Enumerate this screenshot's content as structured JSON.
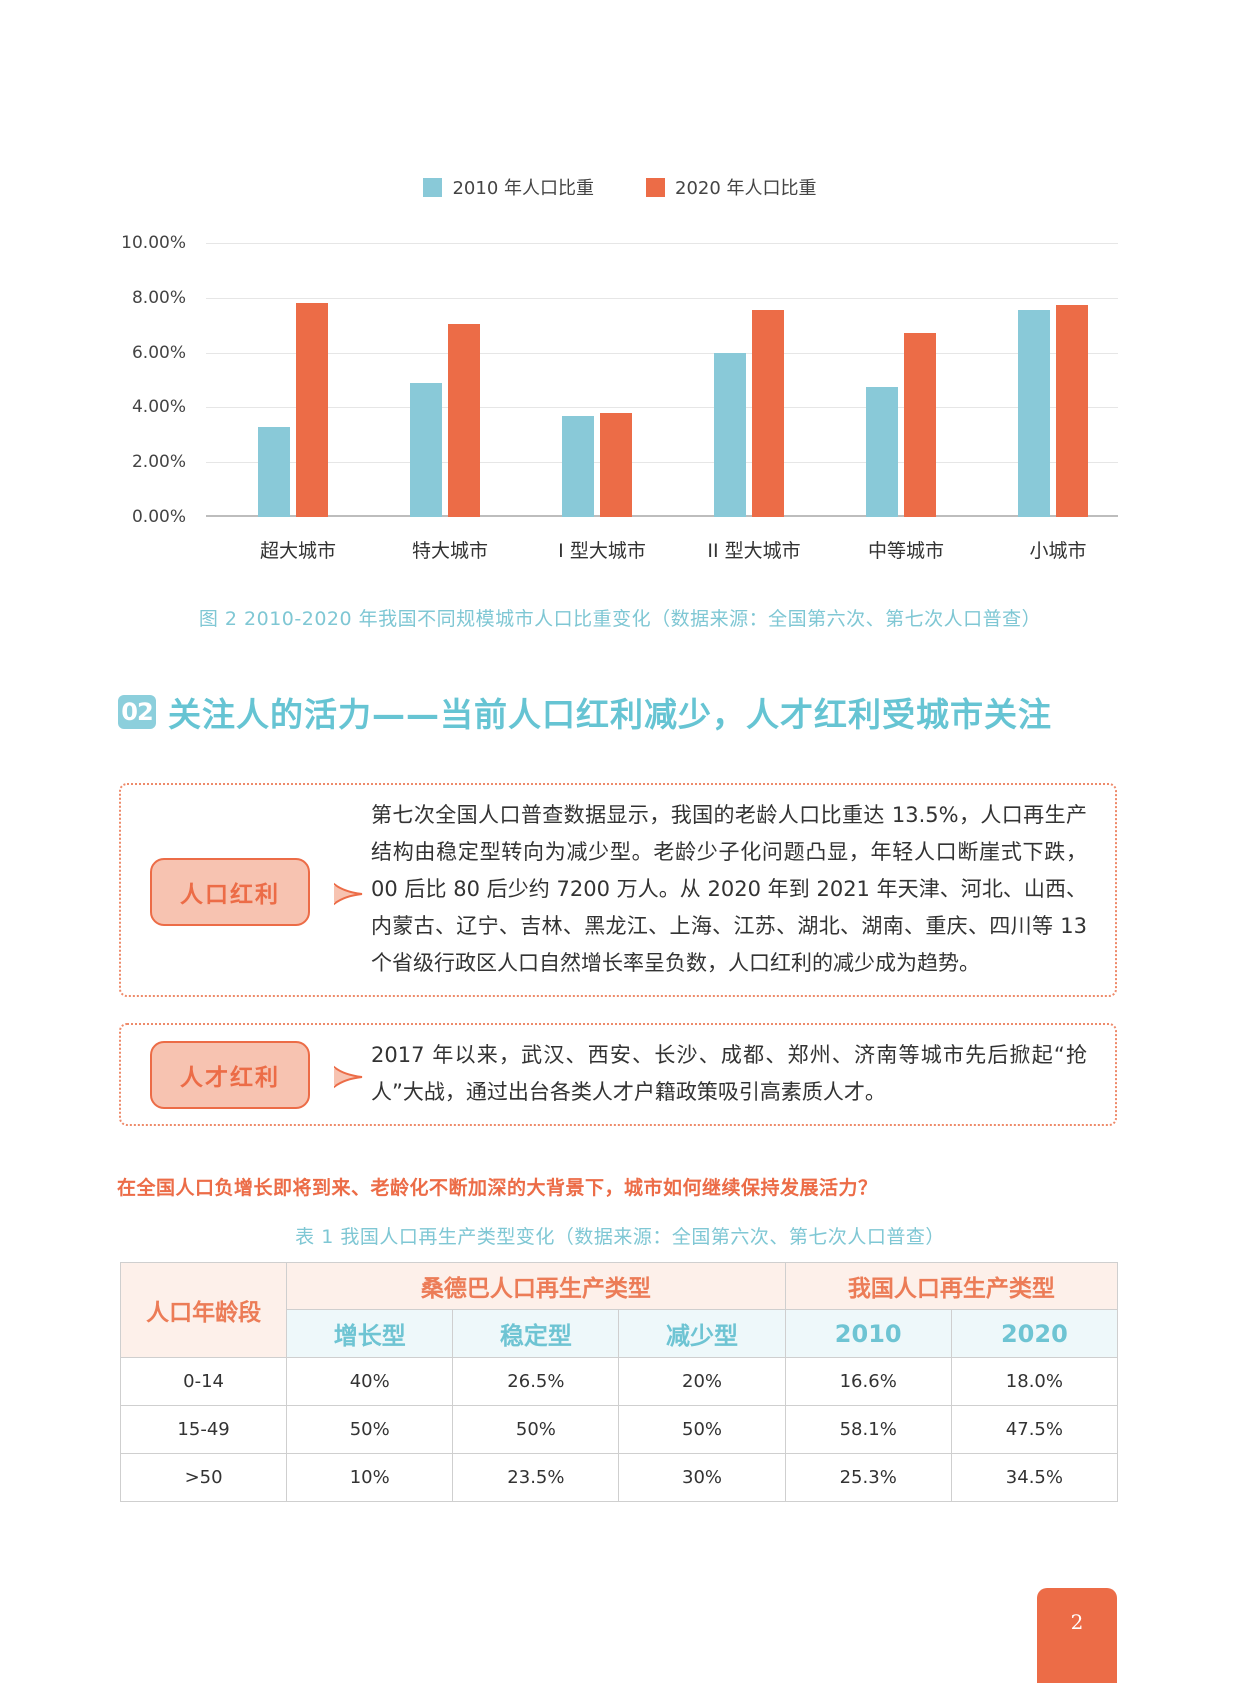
{
  "chart_data": {
    "type": "bar",
    "title": "",
    "categories": [
      "超大城市",
      "特大城市",
      "I 型大城市",
      "II 型大城市",
      "中等城市",
      "小城市"
    ],
    "series": [
      {
        "name": "2010 年人口比重",
        "color": "#89c9d8",
        "values": [
          3.3,
          4.9,
          3.7,
          6.0,
          4.75,
          7.55
        ]
      },
      {
        "name": "2020 年人口比重",
        "color": "#ec6c47",
        "values": [
          7.8,
          7.05,
          3.8,
          7.55,
          6.7,
          7.75
        ]
      }
    ],
    "yticks": [
      "0.00%",
      "2.00%",
      "4.00%",
      "6.00%",
      "8.00%",
      "10.00%"
    ],
    "ylim": [
      0,
      10
    ],
    "xlabel": "",
    "ylabel": "",
    "grid": true,
    "legend_position": "top",
    "unit": "%"
  },
  "legend": [
    {
      "label": "2010 年人口比重",
      "color": "#89c9d8"
    },
    {
      "label": "2020 年人口比重",
      "color": "#ec6c47"
    }
  ],
  "figure_caption": "图 2  2010-2020 年我国不同规模城市人口比重变化（数据来源：全国第六次、第七次人口普查）",
  "section": {
    "badge": "02",
    "title": "关注人的活力——当前人口红利减少，人才红利受城市关注"
  },
  "boxes": [
    {
      "label": "人口红利",
      "text": "第七次全国人口普查数据显示，我国的老龄人口比重达 13.5%，人口再生产结构由稳定型转向为减少型。老龄少子化问题凸显，年轻人口断崖式下跌，00 后比 80 后少约 7200 万人。从 2020 年到 2021 年天津、河北、山西、内蒙古、辽宁、吉林、黑龙江、上海、江苏、湖北、湖南、重庆、四川等 13 个省级行政区人口自然增长率呈负数，人口红利的减少成为趋势。"
    },
    {
      "label": "人才红利",
      "text": "2017 年以来，武汉、西安、长沙、成都、郑州、济南等城市先后掀起“抢人”大战，通过出台各类人才户籍政策吸引高素质人才。"
    }
  ],
  "question": "在全国人口负增长即将到来、老龄化不断加深的大背景下，城市如何继续保持发展活力？",
  "table": {
    "caption": "表 1  我国人口再生产类型变化（数据来源：全国第六次、第七次人口普查）",
    "age_header": "人口年龄段",
    "group_headers": [
      "桑德巴人口再生产类型",
      "我国人口再生产类型"
    ],
    "sub_headers": [
      "增长型",
      "稳定型",
      "减少型",
      "2010",
      "2020"
    ],
    "rows": [
      [
        "0-14",
        "40%",
        "26.5%",
        "20%",
        "16.6%",
        "18.0%"
      ],
      [
        "15-49",
        "50%",
        "50%",
        "50%",
        "58.1%",
        "47.5%"
      ],
      [
        ">50",
        "10%",
        "23.5%",
        "30%",
        "25.3%",
        "34.5%"
      ]
    ]
  },
  "page_number": "2"
}
